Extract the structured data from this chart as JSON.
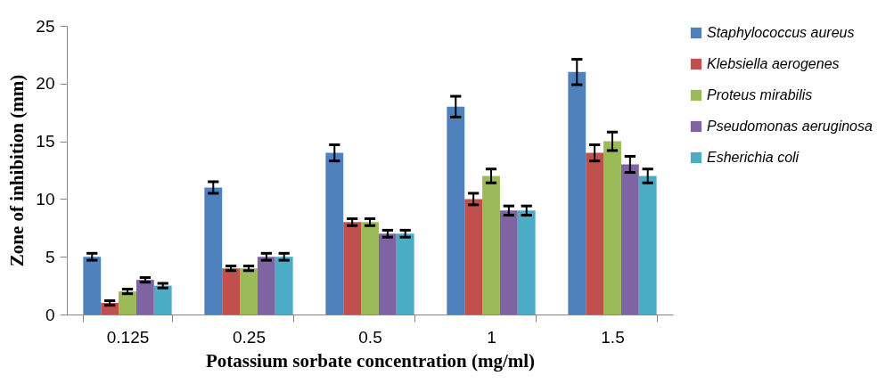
{
  "chart_data": {
    "type": "bar",
    "xlabel": "Potassium sorbate concentration (mg/ml)",
    "ylabel": "Zone of inhibition (mm)",
    "categories": [
      "0.125",
      "0.25",
      "0.5",
      "1",
      "1.5"
    ],
    "series": [
      {
        "name": "Staphylococcus aureus",
        "color": "#4f81bd",
        "values": [
          5,
          11,
          14,
          18,
          21
        ],
        "errors": [
          0.3,
          0.5,
          0.7,
          0.9,
          1.1
        ]
      },
      {
        "name": "Klebsiella aerogenes",
        "color": "#c0504d",
        "values": [
          1,
          4,
          8,
          10,
          14
        ],
        "errors": [
          0.2,
          0.2,
          0.3,
          0.5,
          0.7
        ]
      },
      {
        "name": "Proteus mirabilis",
        "color": "#9bbb59",
        "values": [
          2,
          4,
          8,
          12,
          15
        ],
        "errors": [
          0.2,
          0.2,
          0.3,
          0.6,
          0.8
        ]
      },
      {
        "name": "Pseudomonas aeruginosa",
        "color": "#8064a2",
        "values": [
          3,
          5,
          7,
          9,
          13
        ],
        "errors": [
          0.2,
          0.3,
          0.3,
          0.4,
          0.7
        ]
      },
      {
        "name": "Esherichia coli",
        "color": "#4bacc6",
        "values": [
          2.5,
          5,
          7,
          9,
          12
        ],
        "errors": [
          0.2,
          0.3,
          0.3,
          0.4,
          0.6
        ]
      }
    ],
    "ylim": [
      0,
      25
    ],
    "yticks": [
      0,
      5,
      10,
      15,
      20,
      25
    ],
    "grid": false,
    "legend": "right"
  }
}
